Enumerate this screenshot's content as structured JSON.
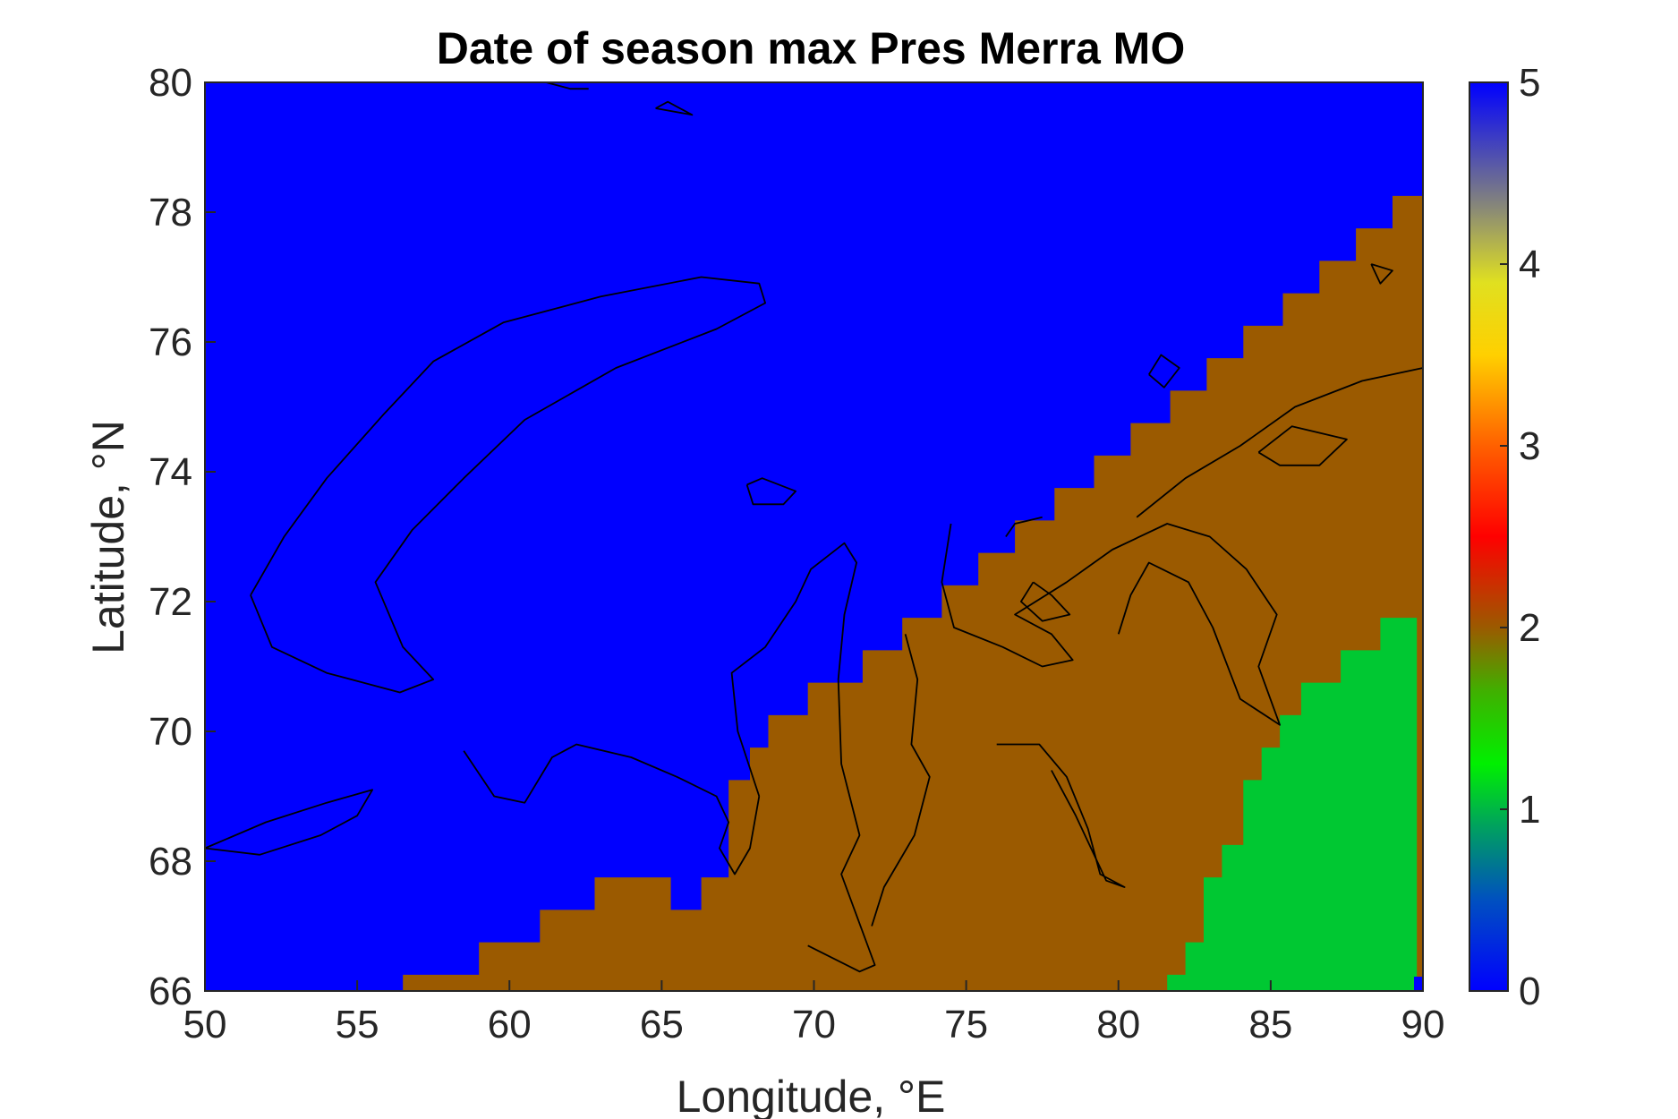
{
  "figure": {
    "title": "Date of season max Pres Merra MO",
    "xlabel": "Longitude, °E",
    "ylabel": "Latitude, °N"
  },
  "chart_data": {
    "type": "heatmap",
    "title": "Date of season max Pres Merra MO",
    "xlabel": "Longitude, °E",
    "ylabel": "Latitude, °N",
    "xlim": [
      50,
      90
    ],
    "ylim": [
      66,
      80
    ],
    "xticks": [
      50,
      55,
      60,
      65,
      70,
      75,
      80,
      85,
      90
    ],
    "yticks": [
      66,
      68,
      70,
      72,
      74,
      76,
      78,
      80
    ],
    "colorbar": {
      "range": [
        0,
        5
      ],
      "ticks": [
        0,
        1,
        2,
        3,
        4,
        5
      ],
      "colormap": "jet-like (blue-green-brown-red-yellow-grey-blue)",
      "position": "right"
    },
    "regions": [
      {
        "value": 5,
        "color": "#0000ff",
        "description_area": "northwest: Barents/Kara Sea"
      },
      {
        "value": 2,
        "color": "#9b5a00",
        "description_area": "central-southeast diagonal band"
      },
      {
        "value": 1,
        "color": "#00c832",
        "description_area": "southeast corner"
      }
    ],
    "brown_boundary": [
      [
        56.5,
        66.0
      ],
      [
        56.5,
        66.25
      ],
      [
        59.0,
        66.25
      ],
      [
        59.0,
        66.75
      ],
      [
        61.0,
        66.75
      ],
      [
        61.0,
        67.25
      ],
      [
        62.8,
        67.25
      ],
      [
        62.8,
        67.75
      ],
      [
        65.3,
        67.75
      ],
      [
        65.3,
        67.25
      ],
      [
        66.3,
        67.25
      ],
      [
        66.3,
        67.75
      ],
      [
        67.2,
        67.75
      ],
      [
        67.2,
        69.25
      ],
      [
        67.9,
        69.25
      ],
      [
        67.9,
        69.75
      ],
      [
        68.5,
        69.75
      ],
      [
        68.5,
        70.25
      ],
      [
        69.8,
        70.25
      ],
      [
        69.8,
        70.75
      ],
      [
        71.6,
        70.75
      ],
      [
        71.6,
        71.25
      ],
      [
        72.9,
        71.25
      ],
      [
        72.9,
        71.75
      ],
      [
        74.2,
        71.75
      ],
      [
        74.2,
        72.25
      ],
      [
        75.4,
        72.25
      ],
      [
        75.4,
        72.75
      ],
      [
        76.6,
        72.75
      ],
      [
        76.6,
        73.25
      ],
      [
        77.9,
        73.25
      ],
      [
        77.9,
        73.75
      ],
      [
        79.2,
        73.75
      ],
      [
        79.2,
        74.25
      ],
      [
        80.4,
        74.25
      ],
      [
        80.4,
        74.75
      ],
      [
        81.7,
        74.75
      ],
      [
        81.7,
        75.25
      ],
      [
        82.9,
        75.25
      ],
      [
        82.9,
        75.75
      ],
      [
        84.1,
        75.75
      ],
      [
        84.1,
        76.25
      ],
      [
        85.4,
        76.25
      ],
      [
        85.4,
        76.75
      ],
      [
        86.6,
        76.75
      ],
      [
        86.6,
        77.25
      ],
      [
        87.8,
        77.25
      ],
      [
        87.8,
        77.75
      ],
      [
        89.0,
        77.75
      ],
      [
        89.0,
        78.25
      ],
      [
        90.0,
        78.25
      ],
      [
        90.0,
        66.0
      ]
    ],
    "green_boundary": [
      [
        81.6,
        66.0
      ],
      [
        81.6,
        66.25
      ],
      [
        82.2,
        66.25
      ],
      [
        82.2,
        66.75
      ],
      [
        82.8,
        66.75
      ],
      [
        82.8,
        67.75
      ],
      [
        83.4,
        67.75
      ],
      [
        83.4,
        68.25
      ],
      [
        84.1,
        68.25
      ],
      [
        84.1,
        69.25
      ],
      [
        84.7,
        69.25
      ],
      [
        84.7,
        69.75
      ],
      [
        85.3,
        69.75
      ],
      [
        85.3,
        70.25
      ],
      [
        86.0,
        70.25
      ],
      [
        86.0,
        70.75
      ],
      [
        87.3,
        70.75
      ],
      [
        87.3,
        71.25
      ],
      [
        88.6,
        71.25
      ],
      [
        88.6,
        71.75
      ],
      [
        89.8,
        71.75
      ],
      [
        89.8,
        66.0
      ]
    ],
    "coastlines": [
      [
        [
          51.5,
          72.1
        ],
        [
          52.6,
          73.0
        ],
        [
          54.0,
          73.9
        ],
        [
          55.9,
          74.9
        ],
        [
          57.5,
          75.7
        ],
        [
          59.8,
          76.3
        ],
        [
          63.0,
          76.7
        ],
        [
          66.3,
          77.0
        ],
        [
          68.2,
          76.9
        ],
        [
          68.4,
          76.6
        ],
        [
          66.8,
          76.2
        ],
        [
          63.5,
          75.6
        ],
        [
          60.5,
          74.8
        ],
        [
          58.5,
          73.9
        ],
        [
          56.8,
          73.1
        ],
        [
          55.6,
          72.3
        ],
        [
          56.5,
          71.3
        ],
        [
          57.5,
          70.8
        ],
        [
          56.4,
          70.6
        ],
        [
          54.0,
          70.9
        ],
        [
          52.2,
          71.3
        ],
        [
          51.5,
          72.1
        ]
      ],
      [
        [
          50.0,
          68.2
        ],
        [
          52.0,
          68.6
        ],
        [
          54.0,
          68.9
        ],
        [
          55.5,
          69.1
        ],
        [
          55.0,
          68.7
        ],
        [
          53.8,
          68.4
        ],
        [
          51.8,
          68.1
        ],
        [
          50.0,
          68.2
        ]
      ],
      [
        [
          58.5,
          69.7
        ],
        [
          59.5,
          69.0
        ],
        [
          60.5,
          68.9
        ],
        [
          61.4,
          69.6
        ],
        [
          62.2,
          69.8
        ],
        [
          64.0,
          69.6
        ],
        [
          65.5,
          69.3
        ],
        [
          66.8,
          69.0
        ],
        [
          67.2,
          68.6
        ],
        [
          66.9,
          68.2
        ],
        [
          67.4,
          67.8
        ],
        [
          67.9,
          68.2
        ],
        [
          68.2,
          69.0
        ]
      ],
      [
        [
          68.2,
          69.0
        ],
        [
          67.5,
          70.0
        ],
        [
          67.3,
          70.9
        ],
        [
          68.4,
          71.3
        ],
        [
          69.4,
          72.0
        ],
        [
          69.9,
          72.5
        ],
        [
          71.0,
          72.9
        ],
        [
          71.4,
          72.6
        ],
        [
          71.0,
          71.8
        ],
        [
          70.8,
          70.8
        ],
        [
          70.9,
          69.5
        ],
        [
          71.5,
          68.4
        ],
        [
          70.9,
          67.8
        ],
        [
          72.0,
          66.4
        ],
        [
          71.5,
          66.3
        ],
        [
          69.8,
          66.7
        ]
      ],
      [
        [
          73.0,
          71.5
        ],
        [
          73.4,
          70.8
        ],
        [
          73.2,
          69.8
        ],
        [
          73.8,
          69.3
        ],
        [
          73.3,
          68.4
        ],
        [
          72.3,
          67.6
        ],
        [
          71.9,
          67.0
        ]
      ],
      [
        [
          74.5,
          73.2
        ],
        [
          74.2,
          72.3
        ],
        [
          74.6,
          71.6
        ],
        [
          76.2,
          71.3
        ],
        [
          77.5,
          71.0
        ],
        [
          78.5,
          71.1
        ],
        [
          77.8,
          71.5
        ],
        [
          76.6,
          71.8
        ],
        [
          78.3,
          72.3
        ],
        [
          79.8,
          72.8
        ],
        [
          81.6,
          73.2
        ],
        [
          83.0,
          73.0
        ],
        [
          84.2,
          72.5
        ],
        [
          85.2,
          71.8
        ],
        [
          84.6,
          71.0
        ],
        [
          85.3,
          70.1
        ],
        [
          84.0,
          70.5
        ],
        [
          83.1,
          71.6
        ],
        [
          82.3,
          72.3
        ],
        [
          81.0,
          72.6
        ],
        [
          80.4,
          72.1
        ],
        [
          80.0,
          71.5
        ]
      ],
      [
        [
          77.2,
          72.3
        ],
        [
          76.8,
          72.0
        ],
        [
          77.5,
          71.7
        ],
        [
          78.4,
          71.8
        ],
        [
          77.8,
          72.1
        ],
        [
          77.2,
          72.3
        ]
      ],
      [
        [
          76.0,
          69.8
        ],
        [
          77.4,
          69.8
        ],
        [
          78.3,
          69.3
        ],
        [
          79.0,
          68.5
        ],
        [
          79.4,
          67.8
        ],
        [
          80.2,
          67.6
        ],
        [
          79.6,
          67.7
        ],
        [
          78.6,
          68.7
        ],
        [
          77.8,
          69.4
        ]
      ],
      [
        [
          76.3,
          73.0
        ],
        [
          76.6,
          73.2
        ],
        [
          77.5,
          73.3
        ]
      ],
      [
        [
          80.6,
          73.3
        ],
        [
          82.2,
          73.9
        ],
        [
          84.0,
          74.4
        ],
        [
          85.8,
          75.0
        ],
        [
          88.0,
          75.4
        ],
        [
          90.0,
          75.6
        ]
      ],
      [
        [
          84.6,
          74.3
        ],
        [
          85.7,
          74.7
        ],
        [
          87.5,
          74.5
        ],
        [
          86.6,
          74.1
        ],
        [
          85.3,
          74.1
        ],
        [
          84.6,
          74.3
        ]
      ],
      [
        [
          81.0,
          75.5
        ],
        [
          81.4,
          75.8
        ],
        [
          82.0,
          75.6
        ],
        [
          81.5,
          75.3
        ],
        [
          81.0,
          75.5
        ]
      ],
      [
        [
          67.8,
          73.8
        ],
        [
          68.3,
          73.9
        ],
        [
          69.4,
          73.7
        ],
        [
          69.0,
          73.5
        ],
        [
          68.0,
          73.5
        ],
        [
          67.8,
          73.8
        ]
      ],
      [
        [
          61.2,
          80.0
        ],
        [
          62.0,
          79.9
        ],
        [
          62.6,
          79.9
        ]
      ],
      [
        [
          64.8,
          79.6
        ],
        [
          66.0,
          79.5
        ],
        [
          65.2,
          79.7
        ],
        [
          64.8,
          79.6
        ]
      ],
      [
        [
          88.3,
          77.2
        ],
        [
          89.0,
          77.1
        ],
        [
          88.6,
          76.9
        ],
        [
          88.3,
          77.2
        ]
      ]
    ]
  }
}
